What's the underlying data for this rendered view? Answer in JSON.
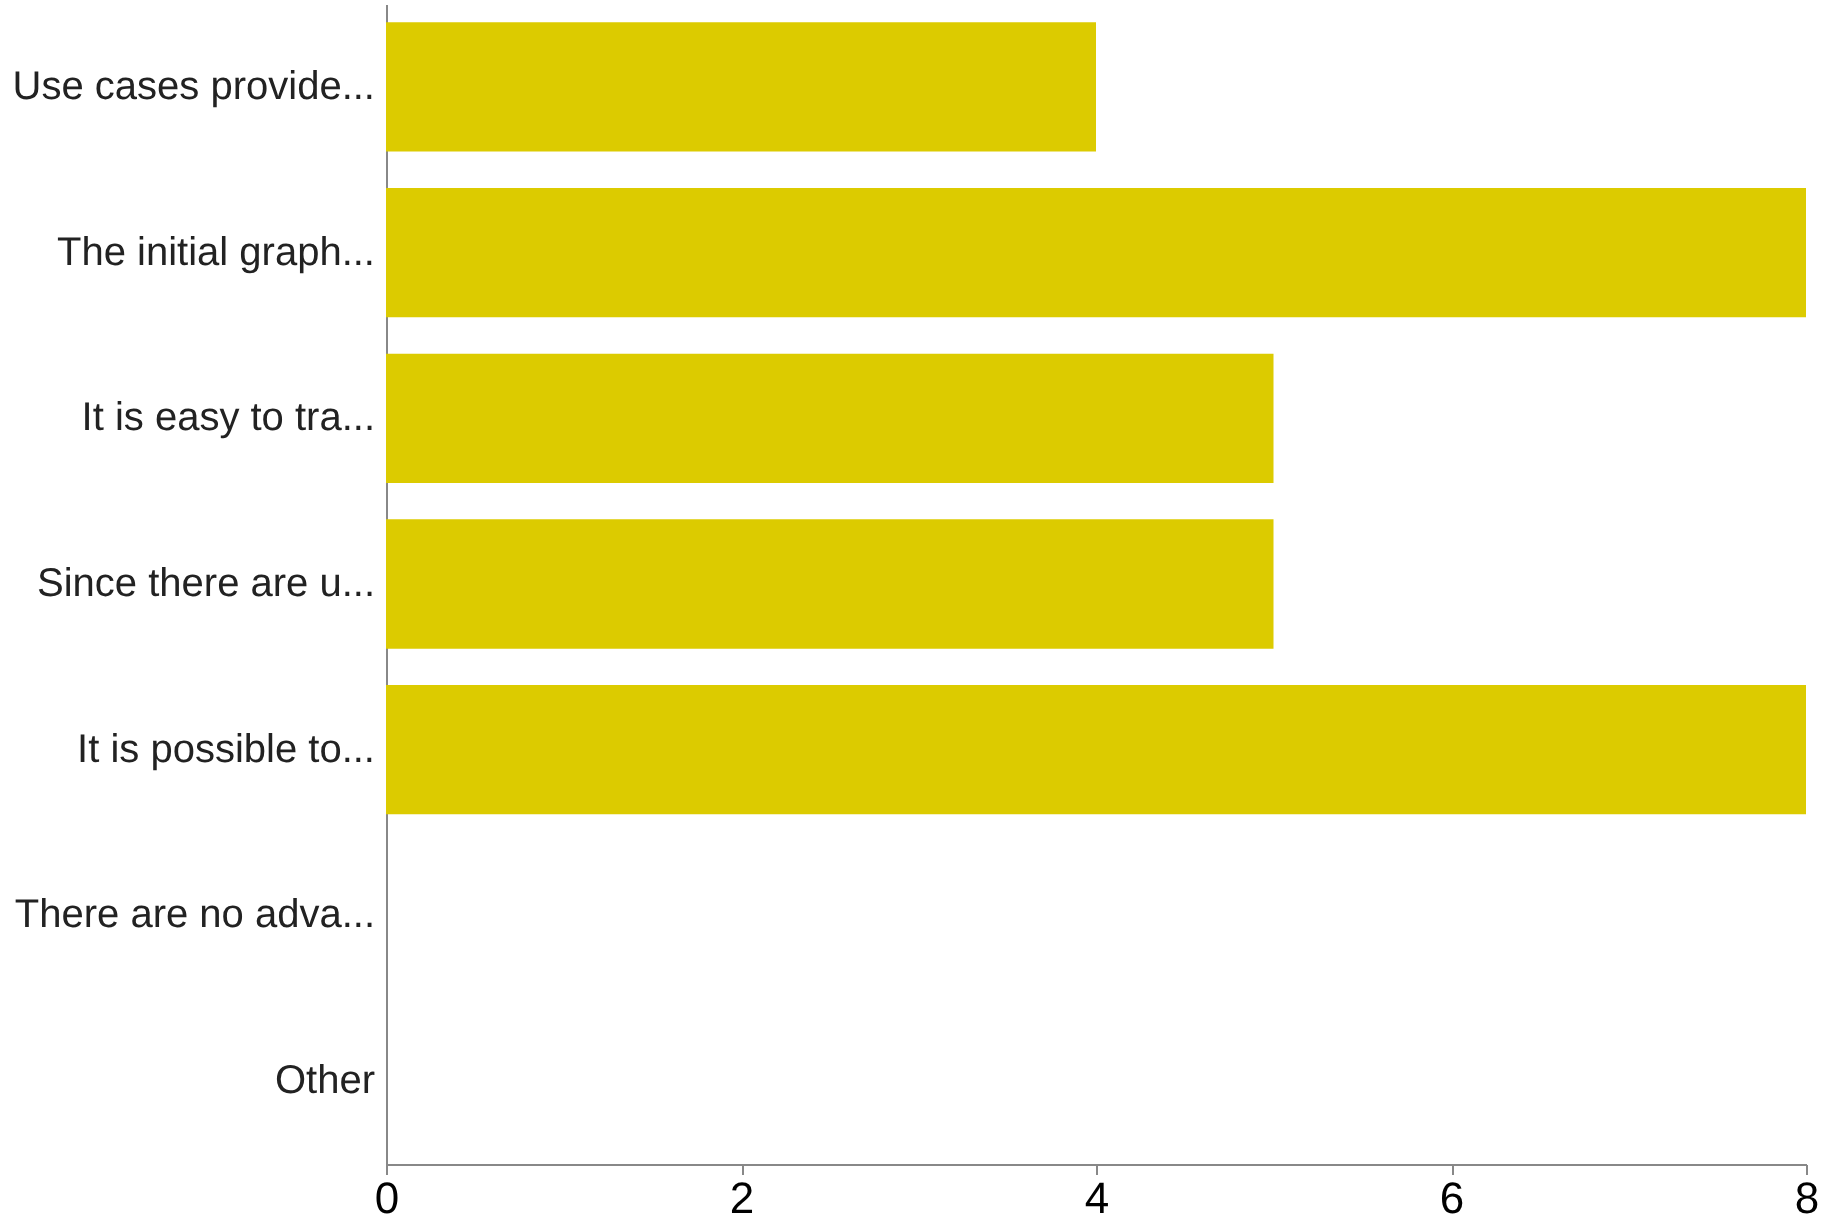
{
  "chart_data": {
    "type": "bar",
    "orientation": "horizontal",
    "categories": [
      "Use cases provide...",
      "The initial graph...",
      "It is easy to tra...",
      "Since there are u...",
      "It is possible to...",
      "There are no adva...",
      "Other"
    ],
    "values": [
      4,
      8,
      5,
      5,
      8,
      0,
      0
    ],
    "color": "#dccb00",
    "xlim": [
      0,
      8
    ],
    "xticks": [
      0,
      2,
      4,
      6,
      8
    ],
    "grid": false
  }
}
